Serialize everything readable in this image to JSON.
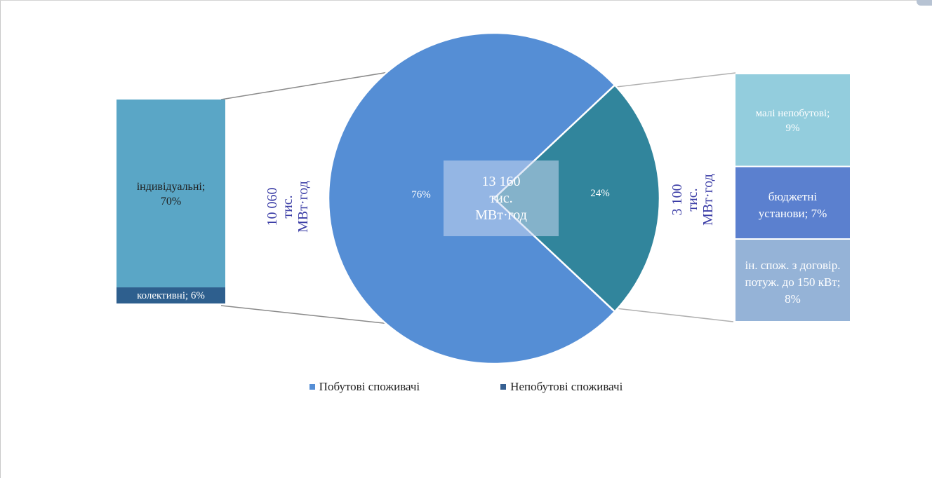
{
  "chart_data": {
    "type": "pie",
    "total_label": [
      "13 160",
      "тис.",
      "МВт·год"
    ],
    "slices": [
      {
        "name": "Побутові споживачі",
        "value": 76,
        "label": "76%",
        "color": "#558ed5"
      },
      {
        "name": "Непобутові споживачі",
        "value": 24,
        "label": "24%",
        "color": "#31859c"
      }
    ],
    "left_breakdown": {
      "total_label": [
        "10 060",
        "тис.",
        "МВт·год"
      ],
      "segments": [
        {
          "label": "індивідуальні; 70%",
          "value": 70,
          "color": "#5aa6c6"
        },
        {
          "label": "колективні; 6%",
          "value": 6,
          "color": "#2e5f8e"
        }
      ]
    },
    "right_breakdown": {
      "total_label": [
        "3 100",
        "тис.",
        "МВт·год"
      ],
      "segments": [
        {
          "label": "малі непобутові; 9%",
          "value": 9,
          "color": "#93cddd"
        },
        {
          "label": "бюджетні установи; 7%",
          "value": 7,
          "color": "#5b80cf"
        },
        {
          "label": "ін. спож. з договір. потуж. до 150 кВт; 8%",
          "value": 8,
          "color": "#95b3d7"
        }
      ]
    },
    "legend": [
      {
        "label": "Побутові споживачі",
        "color": "#558ed5"
      },
      {
        "label": "Непобутові споживачі",
        "color": "#366092"
      }
    ]
  }
}
